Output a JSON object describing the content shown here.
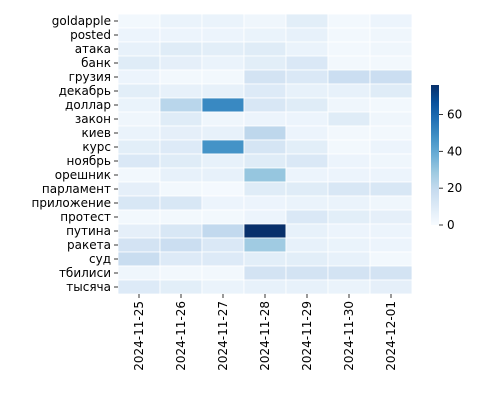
{
  "chart_data": {
    "type": "heatmap",
    "title": "",
    "xlabel": "",
    "ylabel": "",
    "x": [
      "2024-11-25",
      "2024-11-26",
      "2024-11-27",
      "2024-11-28",
      "2024-11-29",
      "2024-11-30",
      "2024-12-01"
    ],
    "y": [
      "goldapple",
      "posted",
      "атака",
      "банк",
      "грузия",
      "декабрь",
      "доллар",
      "закон",
      "киев",
      "курс",
      "ноябрь",
      "орешник",
      "парламент",
      "приложение",
      "протест",
      "путина",
      "ракета",
      "суд",
      "тбилиси",
      "тысяча"
    ],
    "values": [
      [
        2,
        5,
        5,
        3,
        8,
        2,
        4
      ],
      [
        4,
        4,
        4,
        5,
        6,
        2,
        3
      ],
      [
        6,
        9,
        8,
        9,
        5,
        2,
        3
      ],
      [
        9,
        7,
        5,
        8,
        11,
        2,
        2
      ],
      [
        4,
        2,
        2,
        14,
        11,
        17,
        17
      ],
      [
        8,
        6,
        6,
        10,
        6,
        6,
        9
      ],
      [
        5,
        22,
        50,
        12,
        9,
        3,
        2
      ],
      [
        3,
        9,
        3,
        4,
        4,
        9,
        3
      ],
      [
        5,
        7,
        6,
        21,
        4,
        2,
        2
      ],
      [
        8,
        10,
        47,
        13,
        8,
        2,
        4
      ],
      [
        11,
        9,
        6,
        9,
        11,
        4,
        3
      ],
      [
        2,
        6,
        6,
        30,
        4,
        4,
        4
      ],
      [
        7,
        2,
        1,
        9,
        9,
        12,
        12
      ],
      [
        12,
        12,
        4,
        4,
        5,
        5,
        3
      ],
      [
        2,
        2,
        2,
        4,
        11,
        8,
        7
      ],
      [
        7,
        12,
        20,
        76,
        6,
        4,
        4
      ],
      [
        14,
        17,
        11,
        28,
        6,
        5,
        4
      ],
      [
        18,
        10,
        10,
        8,
        8,
        6,
        2
      ],
      [
        3,
        2,
        2,
        14,
        14,
        14,
        14
      ],
      [
        10,
        8,
        5,
        6,
        6,
        5,
        7
      ]
    ],
    "vmin": 0,
    "vmax": 76,
    "colormap": "Blues",
    "colorbar_ticks": [
      0,
      20,
      40,
      60
    ],
    "grid": false,
    "cell_border": "#ffffff"
  }
}
